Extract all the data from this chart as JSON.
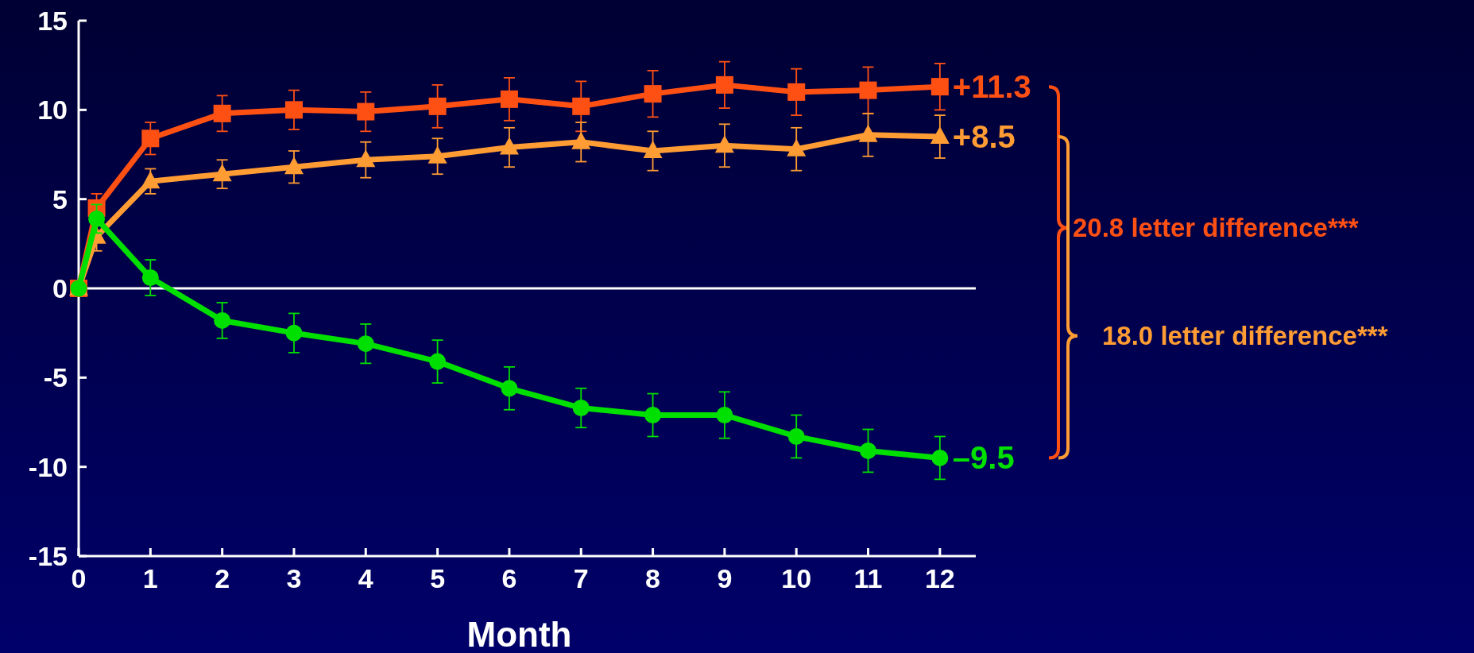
{
  "chart_data": {
    "type": "line",
    "xlabel": "Month",
    "x": [
      0,
      0.25,
      1,
      2,
      3,
      4,
      5,
      6,
      7,
      8,
      9,
      10,
      11,
      12
    ],
    "xlim": [
      0,
      12.5
    ],
    "xticks": [
      0,
      1,
      2,
      3,
      4,
      5,
      6,
      7,
      8,
      9,
      10,
      11,
      12
    ],
    "ylim": [
      -15,
      15
    ],
    "yticks": [
      -15,
      -10,
      -5,
      0,
      5,
      10,
      15
    ],
    "grid": false,
    "line_style": "solid",
    "series": [
      {
        "color": "#ff5014",
        "marker": "square",
        "values": [
          0,
          4.5,
          8.4,
          9.8,
          10.0,
          9.9,
          10.2,
          10.6,
          10.2,
          10.9,
          11.4,
          11.0,
          11.1,
          11.3
        ],
        "errors": [
          null,
          0.8,
          0.9,
          1.0,
          1.1,
          1.1,
          1.2,
          1.2,
          1.4,
          1.3,
          1.3,
          1.3,
          1.3,
          1.3
        ]
      },
      {
        "color": "#ff9c33",
        "marker": "triangle",
        "values": [
          0,
          2.9,
          6.0,
          6.4,
          6.8,
          7.2,
          7.4,
          7.9,
          8.2,
          7.7,
          8.0,
          7.8,
          8.6,
          8.5
        ],
        "errors": [
          null,
          0.8,
          0.7,
          0.8,
          0.9,
          1.0,
          1.0,
          1.1,
          1.1,
          1.1,
          1.2,
          1.2,
          1.2,
          1.2
        ]
      },
      {
        "color": "#00e000",
        "marker": "circle",
        "values": [
          0,
          3.9,
          0.6,
          -1.8,
          -2.5,
          -3.1,
          -4.1,
          -5.6,
          -6.7,
          -7.1,
          -7.1,
          -8.3,
          -9.1,
          -9.5
        ],
        "errors": [
          null,
          0.8,
          1.0,
          1.0,
          1.1,
          1.1,
          1.2,
          1.2,
          1.1,
          1.2,
          1.3,
          1.2,
          1.2,
          1.2
        ]
      }
    ],
    "ref_lines": [
      {
        "axis": "y",
        "value": 0,
        "color": "#ffffff"
      }
    ],
    "annotations": [
      "+11.3",
      "+8.5",
      "–9.5",
      "20.8 letter difference***",
      "18.0 letter difference***"
    ]
  }
}
